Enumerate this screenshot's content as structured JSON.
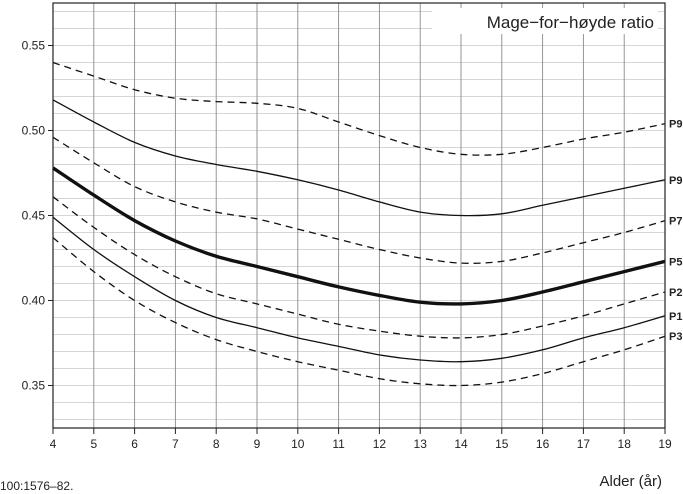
{
  "chart_data": {
    "type": "line",
    "title": "Mage−for−høyde ratio",
    "xlabel": "Alder (år)",
    "ylabel": "",
    "source_fragment": "100:1576–82.",
    "xlim": [
      4,
      19
    ],
    "ylim": [
      0.325,
      0.575
    ],
    "x_ticks": [
      4,
      5,
      6,
      7,
      8,
      9,
      10,
      11,
      12,
      13,
      14,
      15,
      16,
      17,
      18,
      19
    ],
    "y_ticks": [
      0.35,
      0.4,
      0.45,
      0.5,
      0.55
    ],
    "y_tick_labels": [
      "0.35",
      "0.40",
      "0.45",
      "0.50",
      "0.55"
    ],
    "minor_grid_step": 0.01,
    "grid": true,
    "x": [
      4,
      5,
      6,
      7,
      8,
      9,
      10,
      11,
      12,
      13,
      14,
      15,
      16,
      17,
      18,
      19
    ],
    "series": [
      {
        "name": "P9",
        "style": "dashed",
        "values": [
          0.54,
          0.532,
          0.524,
          0.519,
          0.517,
          0.516,
          0.513,
          0.505,
          0.497,
          0.49,
          0.486,
          0.486,
          0.49,
          0.495,
          0.499,
          0.504
        ]
      },
      {
        "name": "P9",
        "style": "solid",
        "values": [
          0.518,
          0.505,
          0.493,
          0.485,
          0.48,
          0.476,
          0.471,
          0.465,
          0.458,
          0.452,
          0.45,
          0.451,
          0.456,
          0.461,
          0.466,
          0.471
        ]
      },
      {
        "name": "P7",
        "style": "dashed",
        "values": [
          0.496,
          0.481,
          0.467,
          0.458,
          0.452,
          0.448,
          0.442,
          0.436,
          0.43,
          0.425,
          0.422,
          0.423,
          0.428,
          0.434,
          0.44,
          0.447
        ]
      },
      {
        "name": "P5",
        "style": "bold",
        "values": [
          0.478,
          0.462,
          0.447,
          0.435,
          0.426,
          0.42,
          0.414,
          0.408,
          0.403,
          0.399,
          0.398,
          0.4,
          0.405,
          0.411,
          0.417,
          0.423
        ]
      },
      {
        "name": "P2",
        "style": "dashed",
        "values": [
          0.461,
          0.443,
          0.427,
          0.414,
          0.404,
          0.398,
          0.392,
          0.386,
          0.382,
          0.379,
          0.378,
          0.38,
          0.385,
          0.391,
          0.398,
          0.405
        ]
      },
      {
        "name": "P1",
        "style": "solid",
        "values": [
          0.449,
          0.43,
          0.414,
          0.4,
          0.39,
          0.384,
          0.378,
          0.373,
          0.368,
          0.365,
          0.364,
          0.366,
          0.371,
          0.378,
          0.384,
          0.391
        ]
      },
      {
        "name": "P3",
        "style": "dashed",
        "values": [
          0.437,
          0.417,
          0.4,
          0.387,
          0.377,
          0.37,
          0.364,
          0.359,
          0.354,
          0.351,
          0.35,
          0.352,
          0.357,
          0.364,
          0.371,
          0.379
        ]
      }
    ]
  }
}
